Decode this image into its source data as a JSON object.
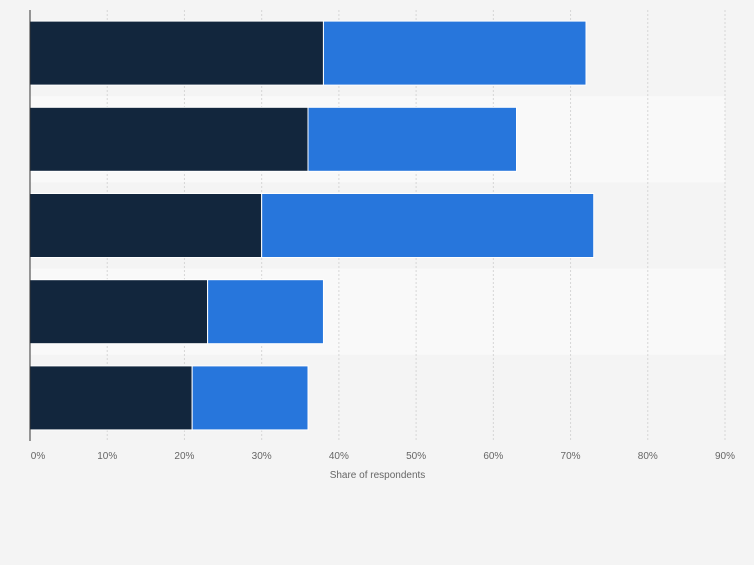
{
  "chart_data": {
    "type": "bar",
    "orientation": "horizontal",
    "stacked": true,
    "categories": [
      "",
      "",
      "",
      "",
      ""
    ],
    "series": [
      {
        "values": [
          38,
          36,
          30,
          23,
          21
        ],
        "color": "#12263d"
      },
      {
        "values": [
          34,
          27,
          43,
          15,
          15
        ],
        "color": "#2776dc"
      }
    ],
    "xlabel": "Share of respondents",
    "xlim": [
      0,
      90
    ],
    "x_ticks": [
      "0%",
      "10%",
      "20%",
      "30%",
      "40%",
      "50%",
      "60%",
      "70%",
      "80%",
      "90%"
    ],
    "grid": true,
    "colors": {
      "background": "#f4f4f4",
      "band_alt": "#f9f9f9",
      "grid": "#d6d6d6",
      "axis": "#333333",
      "tick_text": "#666666"
    }
  }
}
